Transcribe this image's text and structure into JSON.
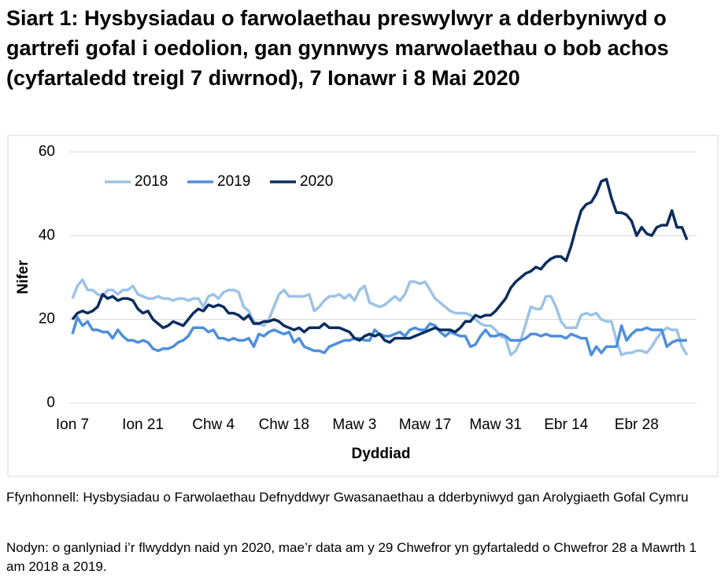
{
  "chart_data": {
    "type": "line",
    "title": "Siart 1: Hysbysiadau o farwolaethau preswylwyr a dderbyniwyd o gartrefi gofal i oedolion, gan gynnwys marwolaethau o bob achos (cyfartaledd treigl 7 diwrnod), 7 Ionawr i 8 Mai 2020",
    "x_label": "Dyddiad",
    "y_label": "Nifer",
    "source": "Ffynhonnell: Hysbysiadau o Farwolaethau Defnyddwyr Gwasanaethau a dderbyniwyd gan Arolygiaeth Gofal Cymru",
    "note": "Nodyn: o ganlyniad i’r flwyddyn naid yn 2020, mae’r data am y 29 Chwefror yn gyfartaledd o Chwefror 28 a Mawrth 1 am 2018 a 2019.",
    "categories": [
      "Ion 7",
      null,
      null,
      null,
      null,
      null,
      null,
      null,
      null,
      null,
      null,
      null,
      null,
      null,
      "Ion 21",
      null,
      null,
      null,
      null,
      null,
      null,
      null,
      null,
      null,
      null,
      null,
      null,
      null,
      "Chw 4",
      null,
      null,
      null,
      null,
      null,
      null,
      null,
      null,
      null,
      null,
      null,
      null,
      null,
      "Chw 18",
      null,
      null,
      null,
      null,
      null,
      null,
      null,
      null,
      null,
      null,
      null,
      null,
      null,
      "Maw 3",
      null,
      null,
      null,
      null,
      null,
      null,
      null,
      null,
      null,
      null,
      null,
      null,
      null,
      "Maw 17",
      null,
      null,
      null,
      null,
      null,
      null,
      null,
      null,
      null,
      null,
      null,
      null,
      null,
      "Maw 31",
      null,
      null,
      null,
      null,
      null,
      null,
      null,
      null,
      null,
      null,
      null,
      null,
      null,
      "Ebr 14",
      null,
      null,
      null,
      null,
      null,
      null,
      null,
      null,
      null,
      null,
      null,
      null,
      null,
      "Ebr 28",
      null,
      null,
      null,
      null,
      null,
      null,
      null,
      null,
      null,
      null
    ],
    "series": [
      {
        "name": "2018",
        "color": "#9dc3e6",
        "values": [
          25,
          28,
          29.5,
          27,
          27,
          26,
          25.5,
          27,
          27,
          26,
          27,
          27,
          28,
          26,
          25.5,
          25,
          25,
          25.5,
          25,
          25,
          24.5,
          25,
          25,
          24.5,
          25,
          25,
          23,
          25.5,
          26,
          25,
          26.5,
          27,
          27,
          26.5,
          23,
          22,
          19.5,
          19,
          18.5,
          20,
          23,
          26,
          27,
          25.5,
          25.5,
          25.5,
          25.5,
          26,
          22,
          23,
          24.5,
          25.5,
          25.5,
          26,
          25,
          26,
          24.5,
          27,
          28,
          24,
          23.5,
          23,
          23.5,
          24.5,
          25.5,
          24.5,
          26,
          29,
          29,
          28.5,
          29,
          27,
          25,
          24,
          23,
          22,
          21.5,
          21.5,
          21.5,
          21,
          20,
          19,
          18.5,
          18.5,
          17.5,
          16,
          15.5,
          11.5,
          12.5,
          15,
          19,
          23,
          22.5,
          22.5,
          25.5,
          25.5,
          23,
          19.5,
          18,
          18,
          18,
          21,
          21.5,
          21,
          21.5,
          20,
          19.5,
          19.5,
          15,
          11.5,
          12,
          12,
          12.5,
          12.5,
          12,
          13.5,
          15.5,
          17,
          18,
          17.5,
          17.5,
          13.5,
          11.5
        ]
      },
      {
        "name": "2019",
        "color": "#4f8fdc",
        "values": [
          16.5,
          20.5,
          18.5,
          19.5,
          17.5,
          17.5,
          17,
          17,
          15.5,
          17.5,
          16,
          15,
          15,
          14.5,
          15,
          14.5,
          13,
          12.5,
          13,
          13,
          13.5,
          14.5,
          15,
          16,
          18,
          18,
          18,
          17,
          17.5,
          15.5,
          15.5,
          15,
          15.5,
          15,
          15,
          15.5,
          13.5,
          16.5,
          16,
          17,
          17.5,
          17,
          16.5,
          17,
          14.5,
          15.5,
          13.5,
          13,
          12.5,
          12.5,
          12,
          13.5,
          14,
          14.5,
          15,
          15,
          15.5,
          15.5,
          15,
          15,
          17.5,
          16.5,
          16,
          16,
          16.5,
          17,
          16,
          17.5,
          18,
          17.5,
          17.5,
          19,
          18.5,
          17,
          16,
          17,
          16.5,
          16,
          16,
          13.5,
          14,
          16,
          17.5,
          16,
          16,
          16.5,
          16,
          15,
          15,
          15,
          15.5,
          16.5,
          16.5,
          16,
          16.5,
          16,
          16,
          16,
          15.5,
          16.5,
          16,
          15.5,
          15.5,
          11.5,
          13.5,
          12,
          13.5,
          13.5,
          13.5,
          18.5,
          15,
          16.5,
          17.5,
          17.5,
          18,
          17.5,
          17.5,
          17.5,
          13.5,
          14.5,
          15,
          15,
          15
        ]
      },
      {
        "name": "2020",
        "color": "#0b2d5e",
        "values": [
          20,
          21.5,
          22,
          21.5,
          22,
          23,
          26,
          25,
          25.5,
          24.5,
          25,
          25,
          24.5,
          22.5,
          21.5,
          22,
          20,
          19,
          18,
          18.5,
          19.5,
          19,
          18.5,
          20,
          21.5,
          22.5,
          22,
          23.5,
          23,
          23.5,
          23,
          21.5,
          21.5,
          21,
          20,
          21,
          19,
          19,
          19.5,
          19.5,
          20,
          19.5,
          18.5,
          18,
          17.5,
          18,
          17,
          18,
          18,
          18,
          19,
          18,
          18,
          18,
          17.5,
          17,
          15.5,
          15,
          16,
          16.5,
          16,
          16.5,
          15,
          14.5,
          15.5,
          15.5,
          15.5,
          15.5,
          16,
          16.5,
          17,
          17.5,
          18,
          17.5,
          17.5,
          17.5,
          17,
          18,
          19.5,
          19.5,
          21,
          20.5,
          21,
          21,
          22,
          23.5,
          25,
          27.5,
          29,
          30,
          31,
          31.5,
          32.5,
          32,
          33.5,
          34.5,
          35,
          35,
          34,
          37.5,
          42,
          46,
          47.5,
          48,
          50,
          53,
          53.5,
          49,
          45.5,
          45.5,
          45,
          43.5,
          40,
          42,
          40.5,
          40,
          42,
          42.5,
          42.5,
          46,
          42,
          42,
          39
        ]
      }
    ],
    "ylim": [
      0,
      60
    ],
    "yticks": [
      0,
      20,
      40,
      60
    ],
    "grid": true,
    "legend": "top-left"
  }
}
